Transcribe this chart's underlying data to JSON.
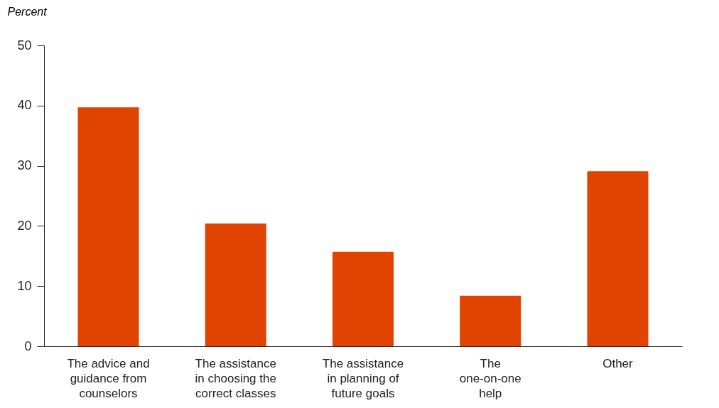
{
  "chart_data": {
    "type": "bar",
    "ylabel": "Percent",
    "categories": [
      "The advice and\nguidance from\ncounselors",
      "The assistance\nin choosing the\ncorrect classes",
      "The assistance\nin planning of\nfuture goals",
      "The\none-on-one\nhelp",
      "Other"
    ],
    "values": [
      39.7,
      20.4,
      15.7,
      8.4,
      29.1
    ],
    "color": "#e04400",
    "ylim": [
      0,
      50
    ],
    "yticks": [
      0,
      10,
      20,
      30,
      40,
      50
    ],
    "grid": false
  }
}
